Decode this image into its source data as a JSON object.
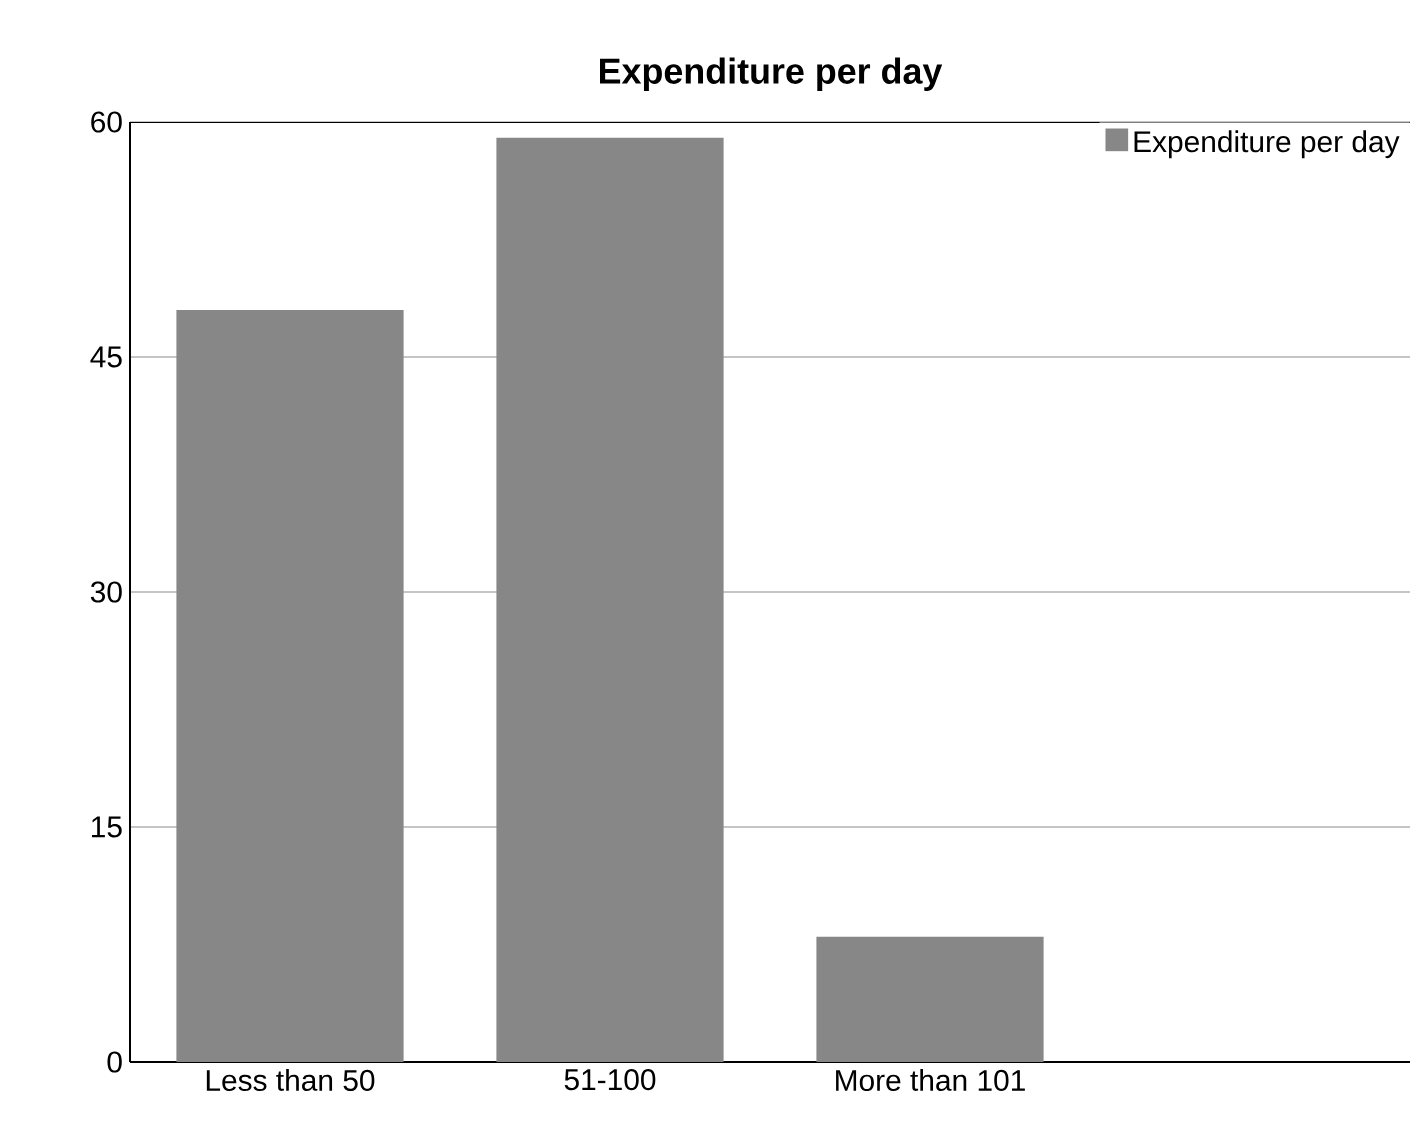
{
  "chart_data": {
    "type": "bar",
    "title": "Expenditure per day",
    "categories": [
      "Less than 50",
      "51-100",
      "More than 101"
    ],
    "series": [
      {
        "name": "Expenditure per day",
        "color": "#878787",
        "values": [
          48,
          59,
          8
        ]
      }
    ],
    "ylim": [
      0,
      60
    ],
    "yticks": [
      0,
      15,
      30,
      45,
      60
    ],
    "grid": "y",
    "legend": "top right"
  }
}
